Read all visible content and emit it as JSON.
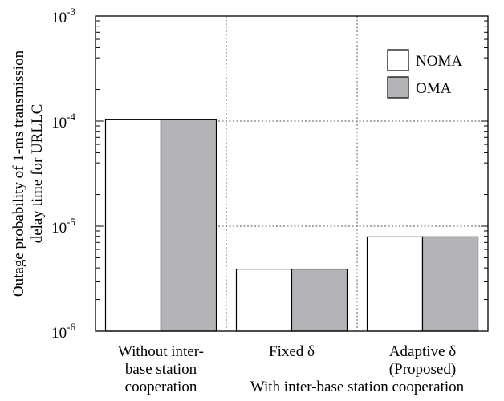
{
  "chart_data": {
    "type": "bar",
    "yscale": "log",
    "ylim": [
      1e-06,
      0.001
    ],
    "ylabel_lines": [
      "Outage probability of 1-ms transmission",
      "delay time for URLLC"
    ],
    "yticks": [
      {
        "value": 0.001,
        "base": "10",
        "exp": "-3"
      },
      {
        "value": 0.0001,
        "base": "10",
        "exp": "-4"
      },
      {
        "value": 1e-05,
        "base": "10",
        "exp": "-5"
      },
      {
        "value": 1e-06,
        "base": "10",
        "exp": "-6"
      }
    ],
    "categories": [
      {
        "lines": [
          "Without inter-",
          "base station",
          "cooperation"
        ]
      },
      {
        "lines": [
          "Fixed δ"
        ]
      },
      {
        "lines": [
          "Adaptive δ",
          "(Proposed)"
        ]
      }
    ],
    "group_label": "With inter-base station cooperation",
    "series": [
      {
        "name": "NOMA",
        "color": "#ffffff",
        "values": [
          0.000103,
          3.9e-06,
          7.9e-06
        ]
      },
      {
        "name": "OMA",
        "color": "#b4b4b8",
        "values": [
          0.000103,
          3.9e-06,
          7.9e-06
        ]
      }
    ],
    "grid": true,
    "legend_position": "top-right"
  }
}
